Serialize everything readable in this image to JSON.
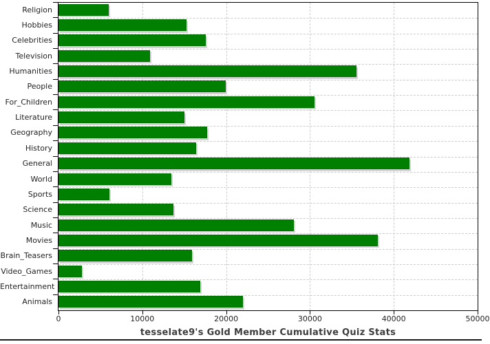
{
  "chart_data": {
    "type": "bar",
    "orientation": "horizontal",
    "title": "tesselate9's Gold Member Cumulative Quiz Stats",
    "categories": [
      "Religion",
      "Hobbies",
      "Celebrities",
      "Television",
      "Humanities",
      "People",
      "For_Children",
      "Literature",
      "Geography",
      "History",
      "General",
      "World",
      "Sports",
      "Science",
      "Music",
      "Movies",
      "Brain_Teasers",
      "Video_Games",
      "Entertainment",
      "Animals"
    ],
    "values": [
      6000,
      15250,
      17550,
      10950,
      35550,
      19950,
      30550,
      15050,
      17700,
      16400,
      41900,
      13450,
      6050,
      13700,
      28100,
      38100,
      15950,
      2800,
      16950,
      22000
    ],
    "xlabel": "",
    "ylabel": "",
    "xlim": [
      0,
      50000
    ],
    "x_ticks": [
      0,
      10000,
      20000,
      30000,
      40000,
      50000
    ],
    "x_tick_labels": [
      "0",
      "10000",
      "20000",
      "30000",
      "40000",
      "50000"
    ],
    "grid": "dashed",
    "legend": "none",
    "colors": {
      "bar_fill": "#008000",
      "bar_shadow": "#d4d4d4",
      "plot_border": "#000000",
      "gridline": "#cccccc",
      "tick_label": "#222222",
      "title": "#3c3c3c",
      "background": "#ffffff"
    }
  }
}
